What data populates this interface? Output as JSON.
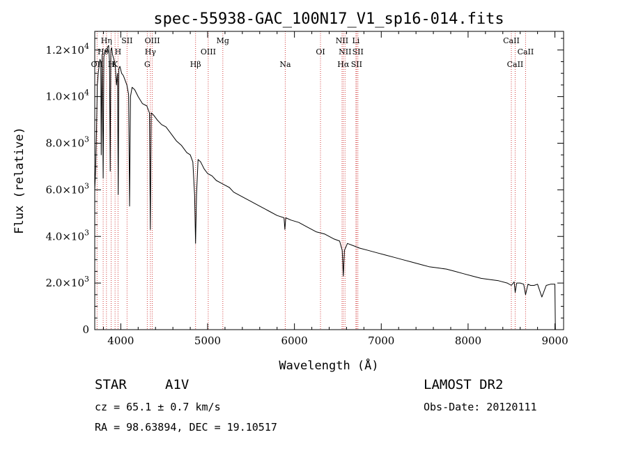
{
  "chart_data": {
    "type": "line",
    "title": "spec-55938-GAC_100N17_V1_sp16-014.fits",
    "xlabel": "Wavelength (Å)",
    "ylabel": "Flux (relative)",
    "xlim": [
      3700,
      9100
    ],
    "ylim": [
      0,
      12800
    ],
    "x_ticks": [
      {
        "value": 4000,
        "label": "4000"
      },
      {
        "value": 5000,
        "label": "5000"
      },
      {
        "value": 6000,
        "label": "6000"
      },
      {
        "value": 7000,
        "label": "7000"
      },
      {
        "value": 8000,
        "label": "8000"
      },
      {
        "value": 9000,
        "label": "9000"
      }
    ],
    "y_ticks": [
      {
        "value": 0,
        "mantissa": "0",
        "exponent": ""
      },
      {
        "value": 2000,
        "mantissa": "2.0×10",
        "exponent": "3"
      },
      {
        "value": 4000,
        "mantissa": "4.0×10",
        "exponent": "3"
      },
      {
        "value": 6000,
        "mantissa": "6.0×10",
        "exponent": "3"
      },
      {
        "value": 8000,
        "mantissa": "8.0×10",
        "exponent": "3"
      },
      {
        "value": 10000,
        "mantissa": "1.0×10",
        "exponent": "4"
      },
      {
        "value": 12000,
        "mantissa": "1.2×10",
        "exponent": "4"
      }
    ],
    "series": [
      {
        "name": "spectrum",
        "x": [
          3700,
          3710,
          3720,
          3730,
          3740,
          3750,
          3760,
          3770,
          3775,
          3785,
          3797,
          3805,
          3820,
          3835,
          3845,
          3860,
          3870,
          3878,
          3885,
          3895,
          3905,
          3920,
          3935,
          3950,
          3962,
          3970,
          3978,
          3990,
          4010,
          4030,
          4050,
          4070,
          4090,
          4101,
          4112,
          4130,
          4160,
          4200,
          4250,
          4300,
          4330,
          4340,
          4350,
          4380,
          4420,
          4470,
          4520,
          4580,
          4640,
          4700,
          4760,
          4800,
          4830,
          4850,
          4861,
          4872,
          4890,
          4920,
          4960,
          5000,
          5050,
          5100,
          5150,
          5200,
          5250,
          5300,
          5400,
          5500,
          5600,
          5700,
          5800,
          5880,
          5890,
          5900,
          5960,
          6050,
          6150,
          6250,
          6350,
          6450,
          6520,
          6550,
          6563,
          6576,
          6610,
          6680,
          6750,
          6850,
          6950,
          7050,
          7150,
          7250,
          7350,
          7450,
          7550,
          7650,
          7750,
          7850,
          7950,
          8050,
          8150,
          8250,
          8350,
          8450,
          8498,
          8530,
          8542,
          8560,
          8600,
          8640,
          8662,
          8690,
          8720,
          8760,
          8800,
          8850,
          8900,
          8950,
          8990,
          9000,
          9005
        ],
        "y": [
          6000,
          6800,
          8500,
          10500,
          11000,
          11300,
          11600,
          11500,
          7500,
          11800,
          6500,
          11700,
          12000,
          11900,
          12100,
          12200,
          11500,
          6800,
          12000,
          12100,
          11800,
          11600,
          11400,
          10500,
          11000,
          5800,
          11200,
          11300,
          11000,
          10900,
          10700,
          10500,
          10100,
          5300,
          10000,
          10400,
          10300,
          10000,
          9700,
          9600,
          9300,
          4300,
          9300,
          9200,
          9000,
          8800,
          8700,
          8400,
          8100,
          7900,
          7600,
          7500,
          7200,
          5800,
          3700,
          5800,
          7300,
          7200,
          6900,
          6700,
          6600,
          6400,
          6300,
          6200,
          6100,
          5900,
          5700,
          5500,
          5300,
          5100,
          4900,
          4800,
          4300,
          4800,
          4700,
          4600,
          4400,
          4200,
          4100,
          3900,
          3800,
          3400,
          2300,
          3400,
          3700,
          3600,
          3500,
          3400,
          3300,
          3200,
          3100,
          3000,
          2900,
          2800,
          2700,
          2650,
          2600,
          2500,
          2400,
          2300,
          2200,
          2150,
          2100,
          2000,
          1900,
          2050,
          1600,
          2000,
          2000,
          1950,
          1500,
          1950,
          1900,
          1900,
          1950,
          1400,
          1900,
          1950,
          1950,
          1950,
          0
        ]
      }
    ],
    "spectral_lines": [
      {
        "name": "OII",
        "wavelength": 3727,
        "row": 2
      },
      {
        "name": "Hθ",
        "wavelength": 3797,
        "row": 1
      },
      {
        "name": "Hη",
        "wavelength": 3835,
        "row": 0
      },
      {
        "name": "H",
        "wavelength": 3889,
        "row": 2
      },
      {
        "name": "K",
        "wavelength": 3934,
        "row": 2
      },
      {
        "name": "H",
        "wavelength": 3968,
        "row": 1
      },
      {
        "name": "SII",
        "wavelength": 4072,
        "row": 0
      },
      {
        "name": "G",
        "wavelength": 4305,
        "row": 2
      },
      {
        "name": "Hγ",
        "wavelength": 4341,
        "row": 1
      },
      {
        "name": "OIII",
        "wavelength": 4363,
        "row": 0
      },
      {
        "name": "Hβ",
        "wavelength": 4861,
        "row": 2
      },
      {
        "name": "OIII",
        "wavelength": 5007,
        "row": 1
      },
      {
        "name": "Mg",
        "wavelength": 5175,
        "row": 0
      },
      {
        "name": "Na",
        "wavelength": 5894,
        "row": 2
      },
      {
        "name": "OI",
        "wavelength": 6300,
        "row": 1
      },
      {
        "name": "NII",
        "wavelength": 6548,
        "row": 0
      },
      {
        "name": "Hα",
        "wavelength": 6563,
        "row": 2
      },
      {
        "name": "NII",
        "wavelength": 6583,
        "row": 1
      },
      {
        "name": "Li",
        "wavelength": 6708,
        "row": 0
      },
      {
        "name": "SII",
        "wavelength": 6716,
        "row": 2
      },
      {
        "name": "SII",
        "wavelength": 6731,
        "row": 1
      },
      {
        "name": "CaII",
        "wavelength": 8498,
        "row": 0
      },
      {
        "name": "CaII",
        "wavelength": 8542,
        "row": 2
      },
      {
        "name": "CaII",
        "wavelength": 8662,
        "row": 1
      }
    ]
  },
  "info": {
    "object_class": "STAR",
    "subclass": "A1V",
    "survey": "LAMOST DR2",
    "redshift": "cz = 65.1 ± 0.7 km/s",
    "obs_date": "Obs-Date: 20120111",
    "coords": "RA =  98.63894, DEC =  19.10517"
  },
  "colors": {
    "line_marker": "#d23c3c",
    "spectrum": "#000000",
    "axis": "#000000"
  }
}
